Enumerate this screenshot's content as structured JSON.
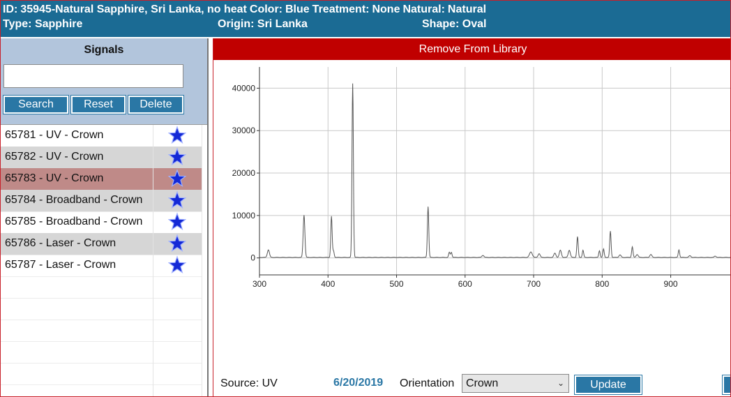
{
  "header": {
    "id_label": "ID:",
    "id_value": "35945-Natural Sapphire, Sri Lanka, no heat",
    "color_label": "Color:",
    "color_value": "Blue",
    "treatment_label": "Treatment:",
    "treatment_value": "None",
    "natural_label": "Natural:",
    "natural_value": "Natural",
    "type_label": "Type:",
    "type_value": "Sapphire",
    "origin_label": "Origin:",
    "origin_value": "Sri Lanka",
    "shape_label": "Shape:",
    "shape_value": "Oval"
  },
  "signals": {
    "title": "Signals",
    "search_value": "",
    "buttons": {
      "search": "Search",
      "reset": "Reset",
      "delete": "Delete"
    },
    "items": [
      {
        "label": "65781 - UV - Crown",
        "style": "plain"
      },
      {
        "label": "65782 - UV - Crown",
        "style": "alt"
      },
      {
        "label": "65783 - UV - Crown",
        "style": "selected"
      },
      {
        "label": "65784 - Broadband - Crown",
        "style": "alt"
      },
      {
        "label": "65785 - Broadband - Crown",
        "style": "plain"
      },
      {
        "label": "65786 - Laser - Crown",
        "style": "alt"
      },
      {
        "label": "65787 - Laser - Crown",
        "style": "plain"
      }
    ],
    "star_icon": "star-icon",
    "star_color": "#1429d6"
  },
  "actions": {
    "remove_label": "Remove From Library"
  },
  "chart_data": {
    "type": "line",
    "title": "",
    "xlabel": "",
    "ylabel": "",
    "xlim": [
      300,
      990
    ],
    "ylim": [
      -4000,
      45000
    ],
    "x_ticks": [
      300,
      400,
      500,
      600,
      700,
      800,
      900
    ],
    "y_ticks": [
      0,
      10000,
      20000,
      30000,
      40000
    ],
    "grid": true,
    "line_color": "#555555",
    "series": [
      {
        "peaks": [
          [
            313,
            1800,
            3
          ],
          [
            365,
            10000,
            2.5
          ],
          [
            405,
            9700,
            2
          ],
          [
            408,
            1500,
            2
          ],
          [
            436,
            41000,
            2
          ],
          [
            546,
            12000,
            2
          ],
          [
            577,
            1200,
            2
          ],
          [
            580,
            1200,
            2
          ],
          [
            626,
            500,
            3
          ],
          [
            696,
            1300,
            4
          ],
          [
            708,
            900,
            3
          ],
          [
            731,
            1000,
            3
          ],
          [
            739,
            1700,
            3
          ],
          [
            752,
            1700,
            3
          ],
          [
            764,
            4900,
            2
          ],
          [
            772,
            1700,
            2
          ],
          [
            796,
            1600,
            2
          ],
          [
            802,
            2000,
            2
          ],
          [
            812,
            6200,
            2
          ],
          [
            826,
            600,
            3
          ],
          [
            844,
            2500,
            2
          ],
          [
            851,
            700,
            3
          ],
          [
            871,
            700,
            3
          ],
          [
            912,
            1800,
            2
          ],
          [
            928,
            400,
            3
          ],
          [
            965,
            300,
            3
          ]
        ]
      }
    ]
  },
  "footer": {
    "source_label": "Source: UV",
    "date": "6/20/2019",
    "orientation_label": "Orientation",
    "orientation_value": "Crown",
    "update_label": "Update"
  }
}
